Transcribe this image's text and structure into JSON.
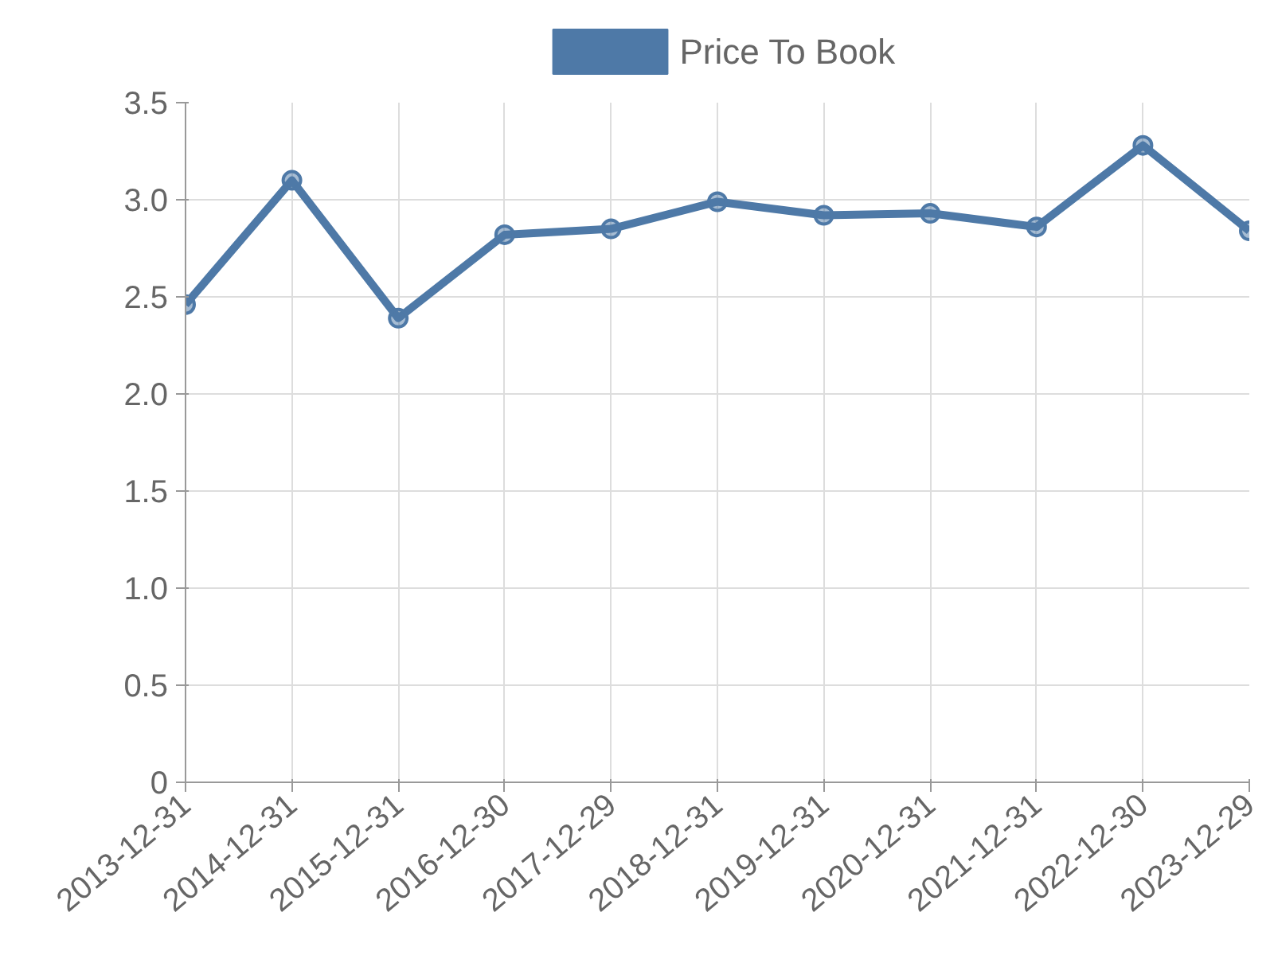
{
  "chart_data": {
    "type": "line",
    "categories": [
      "2013-12-31",
      "2014-12-31",
      "2015-12-31",
      "2016-12-30",
      "2017-12-29",
      "2018-12-31",
      "2019-12-31",
      "2020-12-31",
      "2021-12-31",
      "2022-12-30",
      "2023-12-29"
    ],
    "series": [
      {
        "name": "Price To Book",
        "color": "#4e79a7",
        "values": [
          2.46,
          3.1,
          2.39,
          2.82,
          2.85,
          2.99,
          2.92,
          2.93,
          2.86,
          3.28,
          2.84
        ]
      }
    ],
    "ylim": [
      0,
      3.5
    ],
    "yticks": [
      0,
      {
        "value": 0.5,
        "label": "0.5"
      },
      {
        "value": 1,
        "label": "1.0"
      },
      {
        "value": 1.5,
        "label": "1.5"
      },
      {
        "value": 2,
        "label": "2.0"
      },
      {
        "value": 2.5,
        "label": "2.5"
      },
      {
        "value": 3,
        "label": "3.0"
      },
      {
        "value": 3.5,
        "label": "3.5"
      }
    ],
    "grid": true,
    "legend": "top",
    "marker": "circle",
    "line_style": "solid"
  }
}
